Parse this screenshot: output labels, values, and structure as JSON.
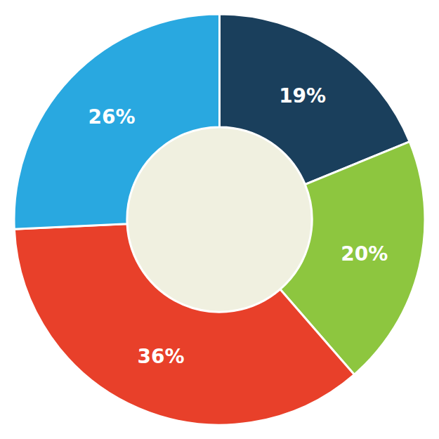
{
  "chart_data": {
    "type": "donut",
    "values": [
      19,
      20,
      36,
      26
    ],
    "value_labels": [
      "19%",
      "20%",
      "36%",
      "26%"
    ],
    "colors": [
      "#1a3f5c",
      "#8dc63f",
      "#e8402a",
      "#29a8e0"
    ],
    "data_labels": true
  }
}
